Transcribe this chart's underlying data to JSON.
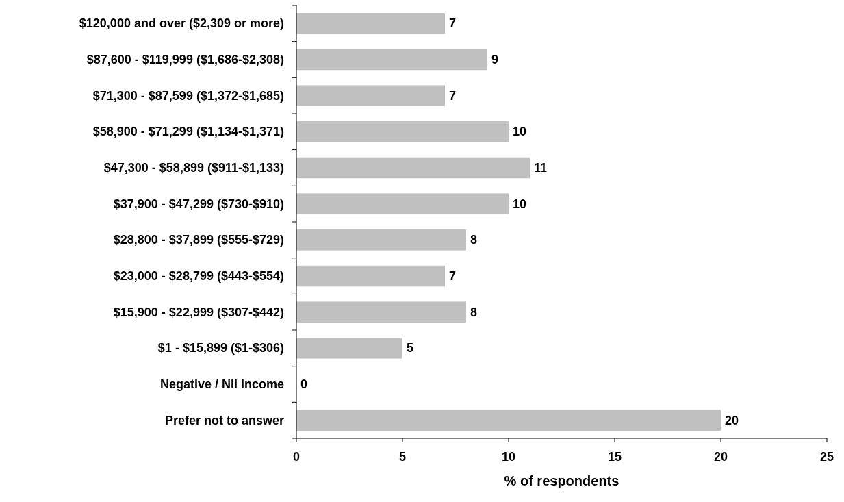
{
  "chart_data": {
    "type": "bar",
    "orientation": "horizontal",
    "xlabel": "% of respondents",
    "categories": [
      "$120,000 and over ($2,309 or more)",
      "$87,600 - $119,999 ($1,686-$2,308)",
      "$71,300 - $87,599 ($1,372-$1,685)",
      "$58,900 - $71,299 ($1,134-$1,371)",
      "$47,300 - $58,899 ($911-$1,133)",
      "$37,900 - $47,299 ($730-$910)",
      "$28,800 - $37,899 ($555-$729)",
      "$23,000 - $28,799 ($443-$554)",
      "$15,900 - $22,999 ($307-$442)",
      "$1 - $15,899  ($1-$306)",
      "Negative / Nil income",
      "Prefer not to answer"
    ],
    "values": [
      7,
      9,
      7,
      10,
      11,
      10,
      8,
      7,
      8,
      5,
      0,
      20
    ],
    "color": "#c0c0c0",
    "xlim": [
      0,
      25
    ],
    "xticks": [
      0,
      5,
      10,
      15,
      20,
      25
    ],
    "data_labels": true,
    "grid": false
  }
}
